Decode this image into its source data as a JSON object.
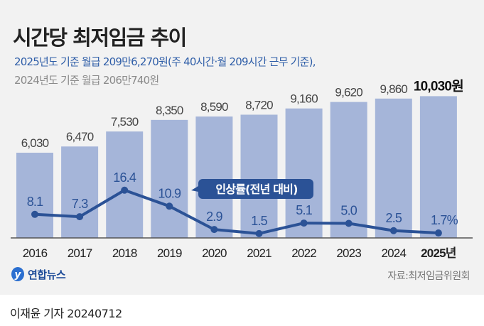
{
  "header": {
    "title": "시간당 최저임금 추이",
    "subtitle_2025": "2025년도 기준 월급 209만6,270원(주 40시간·월 209시간 근무 기준),",
    "subtitle_2024": "2024년도 기준 월급 206만740원"
  },
  "chart_data": {
    "type": "bar",
    "categories": [
      "2016",
      "2017",
      "2018",
      "2019",
      "2020",
      "2021",
      "2022",
      "2023",
      "2024",
      "2025년"
    ],
    "series": [
      {
        "type": "bar",
        "values": [
          6030,
          6470,
          7530,
          8350,
          8590,
          8720,
          9160,
          9620,
          9860,
          10030
        ],
        "labels": [
          "6,030",
          "6,470",
          "7,530",
          "8,350",
          "8,590",
          "8,720",
          "9,160",
          "9,620",
          "9,860",
          "10,030원"
        ]
      },
      {
        "type": "line",
        "name": "인상률(전년 대비)",
        "values": [
          8.1,
          7.3,
          16.4,
          10.9,
          2.9,
          1.5,
          5.1,
          5.0,
          2.5,
          1.7
        ],
        "labels": [
          "8.1",
          "7.3",
          "16.4",
          "10.9",
          "2.9",
          "1.5",
          "5.1",
          "5.0",
          "2.5",
          "1.7%"
        ]
      }
    ],
    "colors": {
      "bar": "#a5b5d9",
      "line": "#2b5296",
      "highlight_text": "#111111"
    },
    "grid": false
  },
  "footer": {
    "source": "자료:최저임금위원회",
    "logo": "연합뉴스",
    "byline": "이재윤 기자  20240712"
  }
}
